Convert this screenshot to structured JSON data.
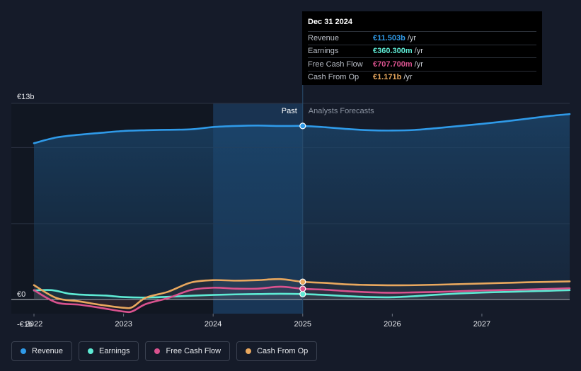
{
  "tooltip": {
    "date": "Dec 31 2024",
    "rows": [
      {
        "label": "Revenue",
        "value": "€11.503b",
        "unit": "/yr",
        "color": "#2f9ae8"
      },
      {
        "label": "Earnings",
        "value": "€360.300m",
        "unit": "/yr",
        "color": "#5eead4"
      },
      {
        "label": "Free Cash Flow",
        "value": "€707.700m",
        "unit": "/yr",
        "color": "#d9528e"
      },
      {
        "label": "Cash From Op",
        "value": "€1.171b",
        "unit": "/yr",
        "color": "#e9a85e"
      }
    ]
  },
  "labels": {
    "past": "Past",
    "forecast": "Analysts Forecasts"
  },
  "legend": [
    {
      "label": "Revenue",
      "color": "#2f9ae8"
    },
    {
      "label": "Earnings",
      "color": "#5eead4"
    },
    {
      "label": "Free Cash Flow",
      "color": "#d9528e"
    },
    {
      "label": "Cash From Op",
      "color": "#e9a85e"
    }
  ],
  "chart_data": {
    "type": "line",
    "title": "",
    "xlabel": "",
    "ylabel": "",
    "xlim": [
      2022.0,
      2027.98
    ],
    "ylim": [
      -1,
      13
    ],
    "y_ticks": [
      {
        "value": 13,
        "label": "€13b"
      },
      {
        "value": 0,
        "label": "€0"
      },
      {
        "value": -1,
        "label": "-€1b"
      }
    ],
    "x_ticks": [
      2022,
      2023,
      2024,
      2025,
      2026,
      2027
    ],
    "x_tick_labels": [
      "2022",
      "2023",
      "2024",
      "2025",
      "2026",
      "2027"
    ],
    "past_end": 2025.0,
    "highlight_start": 2024.0,
    "grid": true,
    "series": [
      {
        "name": "Revenue",
        "color": "#2f9ae8",
        "fill": true,
        "points": [
          [
            2022.0,
            10.36
          ],
          [
            2022.25,
            10.74
          ],
          [
            2022.5,
            10.92
          ],
          [
            2022.75,
            11.05
          ],
          [
            2023.0,
            11.17
          ],
          [
            2023.25,
            11.22
          ],
          [
            2023.5,
            11.25
          ],
          [
            2023.75,
            11.28
          ],
          [
            2024.0,
            11.43
          ],
          [
            2024.25,
            11.5
          ],
          [
            2024.5,
            11.53
          ],
          [
            2024.75,
            11.5
          ],
          [
            2025.0,
            11.503
          ],
          [
            2025.25,
            11.42
          ],
          [
            2025.5,
            11.3
          ],
          [
            2025.75,
            11.22
          ],
          [
            2026.0,
            11.2
          ],
          [
            2026.25,
            11.24
          ],
          [
            2026.5,
            11.36
          ],
          [
            2026.75,
            11.5
          ],
          [
            2027.0,
            11.64
          ],
          [
            2027.25,
            11.8
          ],
          [
            2027.5,
            11.98
          ],
          [
            2027.75,
            12.16
          ],
          [
            2027.98,
            12.29
          ]
        ]
      },
      {
        "name": "Earnings",
        "color": "#5eead4",
        "fill": false,
        "points": [
          [
            2022.0,
            0.6
          ],
          [
            2022.2,
            0.62
          ],
          [
            2022.4,
            0.38
          ],
          [
            2022.6,
            0.3
          ],
          [
            2022.8,
            0.26
          ],
          [
            2023.0,
            0.16
          ],
          [
            2023.25,
            0.13
          ],
          [
            2023.5,
            0.18
          ],
          [
            2023.75,
            0.25
          ],
          [
            2024.0,
            0.3
          ],
          [
            2024.25,
            0.34
          ],
          [
            2024.5,
            0.36
          ],
          [
            2024.75,
            0.38
          ],
          [
            2025.0,
            0.36
          ],
          [
            2025.25,
            0.3
          ],
          [
            2025.5,
            0.22
          ],
          [
            2025.75,
            0.16
          ],
          [
            2026.0,
            0.15
          ],
          [
            2026.25,
            0.22
          ],
          [
            2026.5,
            0.32
          ],
          [
            2026.75,
            0.4
          ],
          [
            2027.0,
            0.46
          ],
          [
            2027.25,
            0.5
          ],
          [
            2027.5,
            0.54
          ],
          [
            2027.75,
            0.58
          ],
          [
            2027.98,
            0.62
          ]
        ]
      },
      {
        "name": "Free Cash Flow",
        "color": "#d9528e",
        "fill": false,
        "points": [
          [
            2022.0,
            0.62
          ],
          [
            2022.25,
            -0.2
          ],
          [
            2022.5,
            -0.34
          ],
          [
            2022.75,
            -0.56
          ],
          [
            2023.0,
            -0.8
          ],
          [
            2023.1,
            -0.78
          ],
          [
            2023.25,
            -0.3
          ],
          [
            2023.5,
            0.1
          ],
          [
            2023.75,
            0.62
          ],
          [
            2024.0,
            0.78
          ],
          [
            2024.25,
            0.72
          ],
          [
            2024.5,
            0.72
          ],
          [
            2024.75,
            0.85
          ],
          [
            2025.0,
            0.708
          ],
          [
            2025.25,
            0.65
          ],
          [
            2025.5,
            0.55
          ],
          [
            2025.75,
            0.48
          ],
          [
            2026.0,
            0.45
          ],
          [
            2026.25,
            0.47
          ],
          [
            2026.5,
            0.5
          ],
          [
            2026.75,
            0.55
          ],
          [
            2027.0,
            0.6
          ],
          [
            2027.25,
            0.63
          ],
          [
            2027.5,
            0.66
          ],
          [
            2027.75,
            0.7
          ],
          [
            2027.98,
            0.74
          ]
        ]
      },
      {
        "name": "Cash From Op",
        "color": "#e9a85e",
        "fill": false,
        "points": [
          [
            2022.0,
            0.95
          ],
          [
            2022.25,
            0.1
          ],
          [
            2022.5,
            -0.12
          ],
          [
            2022.75,
            -0.36
          ],
          [
            2023.0,
            -0.55
          ],
          [
            2023.1,
            -0.5
          ],
          [
            2023.25,
            0.12
          ],
          [
            2023.5,
            0.52
          ],
          [
            2023.75,
            1.12
          ],
          [
            2024.0,
            1.28
          ],
          [
            2024.25,
            1.25
          ],
          [
            2024.5,
            1.28
          ],
          [
            2024.75,
            1.35
          ],
          [
            2025.0,
            1.171
          ],
          [
            2025.25,
            1.1
          ],
          [
            2025.5,
            1.0
          ],
          [
            2025.75,
            0.96
          ],
          [
            2026.0,
            0.94
          ],
          [
            2026.25,
            0.95
          ],
          [
            2026.5,
            0.98
          ],
          [
            2026.75,
            1.02
          ],
          [
            2027.0,
            1.06
          ],
          [
            2027.25,
            1.1
          ],
          [
            2027.5,
            1.14
          ],
          [
            2027.75,
            1.17
          ],
          [
            2027.98,
            1.2
          ]
        ]
      }
    ]
  }
}
